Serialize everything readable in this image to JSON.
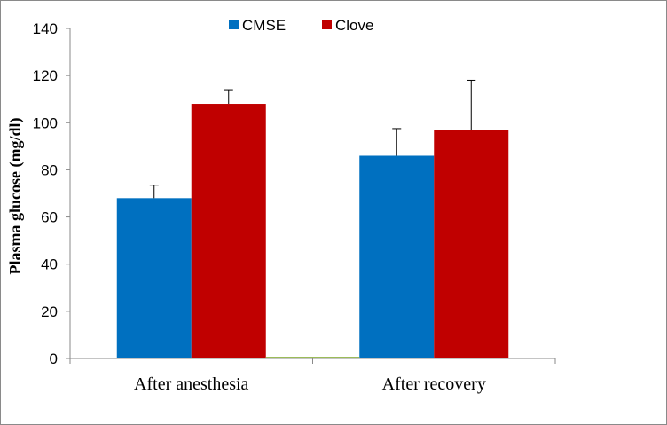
{
  "chart_data": {
    "type": "bar",
    "title": "",
    "xlabel": "",
    "ylabel": "Plasma glucose (mg/dl)",
    "ylim": [
      0,
      140
    ],
    "yticks": [
      0,
      20,
      40,
      60,
      80,
      100,
      120,
      140
    ],
    "categories": [
      "After anesthesia",
      "After recovery"
    ],
    "series": [
      {
        "name": "CMSE",
        "color": "#0070C0",
        "values": [
          68,
          86
        ],
        "errors": [
          5.5,
          11.5
        ]
      },
      {
        "name": "Clove",
        "color": "#C00000",
        "values": [
          108,
          97
        ],
        "errors": [
          6,
          21
        ]
      }
    ],
    "legend_position": "top-center",
    "grid": false
  }
}
